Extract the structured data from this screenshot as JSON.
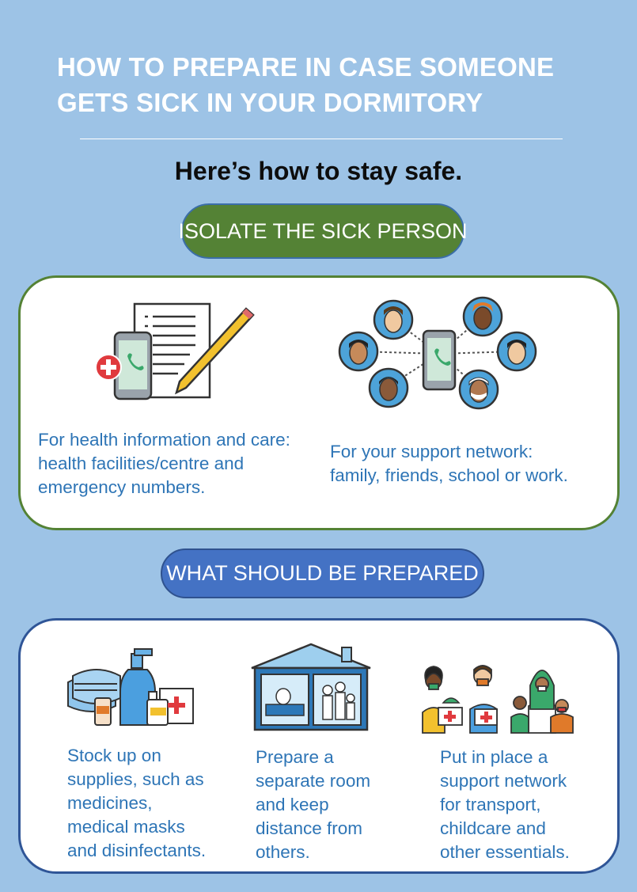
{
  "header": {
    "title_line1": "HOW TO PREPARE IN CASE SOMEONE",
    "title_line2": "GETS SICK IN YOUR DORMITORY",
    "subtitle": "Here’s how to stay safe."
  },
  "isolate_section": {
    "pill_label": "ISOLATE THE SICK PERSON",
    "items": [
      {
        "icon": "phone-document-pencil-icon",
        "lines": [
          "For health information and care:",
          "health facilities/centre and",
          "emergency numbers."
        ]
      },
      {
        "icon": "phone-people-network-icon",
        "lines": [
          "For your support network:",
          "family, friends, school or work."
        ]
      }
    ]
  },
  "prepare_section": {
    "pill_label": "WHAT SHOULD BE PREPARED",
    "items": [
      {
        "icon": "medical-supplies-icon",
        "lines": [
          "Stock up on",
          "supplies, such as",
          "medicines,",
          "medical masks",
          "and disinfectants."
        ]
      },
      {
        "icon": "house-separate-room-icon",
        "lines": [
          "Prepare a",
          "separate room",
          "and keep",
          "distance from",
          "others."
        ]
      },
      {
        "icon": "support-network-people-icon",
        "lines": [
          "Put in place a",
          "support network",
          "for transport,",
          "childcare and",
          "other essentials."
        ]
      }
    ]
  },
  "colors": {
    "background": "#9dc3e6",
    "green": "#548235",
    "blue": "#4472c4",
    "body_text": "#2e75b6"
  }
}
